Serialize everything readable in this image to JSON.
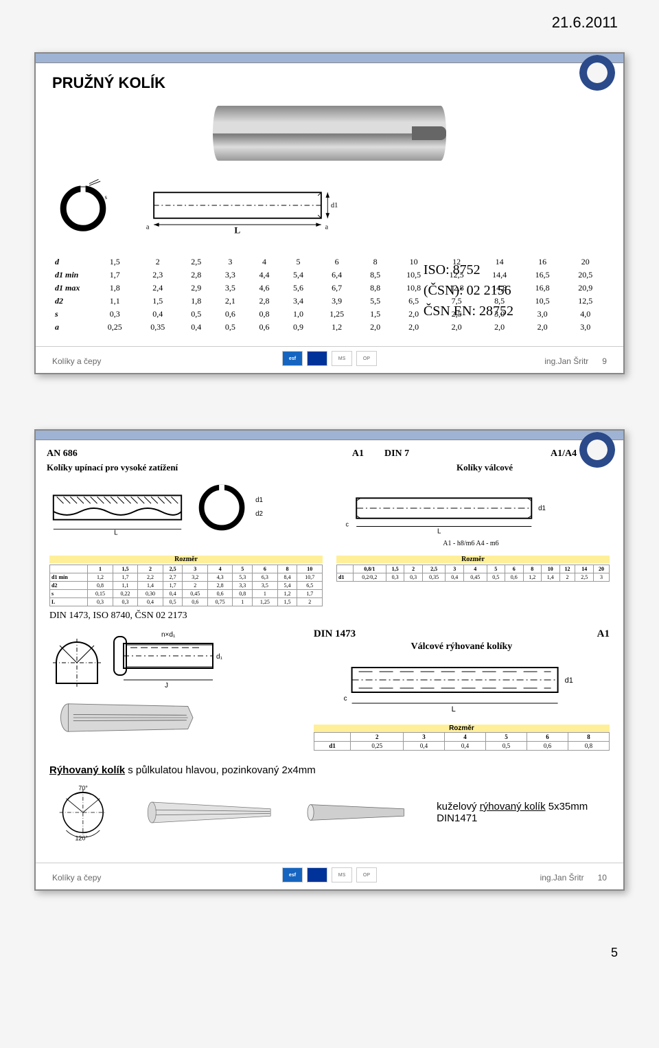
{
  "date": "21.6.2011",
  "page_no": "5",
  "slide1": {
    "title": "PRUŽNÝ KOLÍK",
    "iso": {
      "iso": "ISO:  8752",
      "csn": "(ČSN):  02 2156",
      "csnen": "ČSN EN:  28752"
    },
    "dim_table": {
      "rows": [
        "d",
        "d1 min",
        "d1 max",
        "d2",
        "s",
        "a"
      ],
      "cols": [
        "1,5",
        "2",
        "2,5",
        "3",
        "4",
        "5",
        "6",
        "8",
        "10",
        "12",
        "14",
        "16",
        "20"
      ],
      "data": [
        [
          "1,7",
          "2,3",
          "2,8",
          "3,3",
          "4,4",
          "5,4",
          "6,4",
          "8,5",
          "10,5",
          "12,5",
          "14,4",
          "16,5",
          "20,5"
        ],
        [
          "1,8",
          "2,4",
          "2,9",
          "3,5",
          "4,6",
          "5,6",
          "6,7",
          "8,8",
          "10,8",
          "12,8",
          "14,8",
          "16,8",
          "20,9"
        ],
        [
          "1,1",
          "1,5",
          "1,8",
          "2,1",
          "2,8",
          "3,4",
          "3,9",
          "5,5",
          "6,5",
          "7,5",
          "8,5",
          "10,5",
          "12,5"
        ],
        [
          "0,3",
          "0,4",
          "0,5",
          "0,6",
          "0,8",
          "1,0",
          "1,25",
          "1,5",
          "2,0",
          "2,5",
          "3,0",
          "3,0",
          "4,0"
        ],
        [
          "0,25",
          "0,35",
          "0,4",
          "0,5",
          "0,6",
          "0,9",
          "1,2",
          "2,0",
          "2,0",
          "2,0",
          "2,0",
          "2,0",
          "3,0"
        ]
      ]
    },
    "footer": {
      "left": "Kolíky a čepy",
      "right": "ing.Jan Šritr",
      "num": "9"
    }
  },
  "slide2": {
    "header": {
      "an": "AN 686",
      "a1": "A1",
      "din7": "DIN 7",
      "a1a4": "A1/A4"
    },
    "subcap": {
      "left": "Kolíky upínací pro vysoké zatížení",
      "right": "Kolíky válcové"
    },
    "mini_left": {
      "title": "Rozměr",
      "rows": [
        "d1 min",
        "d2",
        "s",
        "L"
      ],
      "cols": [
        "1",
        "1,5",
        "2",
        "2,5",
        "3",
        "4",
        "5",
        "6",
        "8",
        "10"
      ],
      "data": [
        [
          "1,2",
          "1,7",
          "2,2",
          "2,7",
          "3,2",
          "4,3",
          "5,3",
          "6,3",
          "8,4",
          "10,7"
        ],
        [
          "0,8",
          "1,1",
          "1,4",
          "1,7",
          "2",
          "2,8",
          "3,3",
          "3,5",
          "5,4",
          "6,5"
        ],
        [
          "0,15",
          "0,22",
          "0,30",
          "0,4",
          "0,45",
          "0,6",
          "0,8",
          "1",
          "1,2",
          "1,7"
        ],
        [
          "0,3",
          "0,3",
          "0,4",
          "0,5",
          "0,6",
          "0,75",
          "1",
          "1,25",
          "1,5",
          "2"
        ]
      ]
    },
    "mini_right": {
      "caption": "A1 - h8/m6   A4 - m6",
      "title": "Rozměr",
      "rows": [
        "d1",
        "c"
      ],
      "cols": [
        "0,8/1",
        "1,5",
        "2",
        "2,5",
        "3",
        "4",
        "5",
        "6",
        "8",
        "10",
        "12",
        "14",
        "20"
      ],
      "data": [
        [
          "0,2/0,2",
          "0,3",
          "0,3",
          "0,35",
          "0,4",
          "0,45",
          "0,5",
          "0,6",
          "1,2",
          "1,4",
          "2",
          "2,5",
          "3"
        ]
      ]
    },
    "din_info": "DIN 1473, ISO 8740, ČSN 02 2173",
    "right_block": {
      "din": "DIN 1473",
      "grade": "A1",
      "sub": "Válcové rýhované kolíky"
    },
    "rozm": {
      "title": "Rozměr",
      "rows": [
        "d1",
        "c"
      ],
      "cols": [
        "2",
        "3",
        "4",
        "5",
        "6",
        "8"
      ],
      "data": [
        [
          "0,25",
          "0,4",
          "0,4",
          "0,5",
          "0,6",
          "0,8"
        ]
      ]
    },
    "desc": {
      "pre": "Rýhovaný kolík",
      "rest": " s půlkulatou hlavou, pozinkovaný 2x4mm"
    },
    "cone": {
      "pre": "kuželový ",
      "link": "rýhovaný kolík",
      "rest": " 5x35mm DIN1471"
    },
    "footer": {
      "left": "Kolíky a čepy",
      "right": "ing.Jan Šritr",
      "num": "10"
    }
  },
  "sponsors": [
    "esf",
    "EU",
    "MS",
    "OP"
  ]
}
